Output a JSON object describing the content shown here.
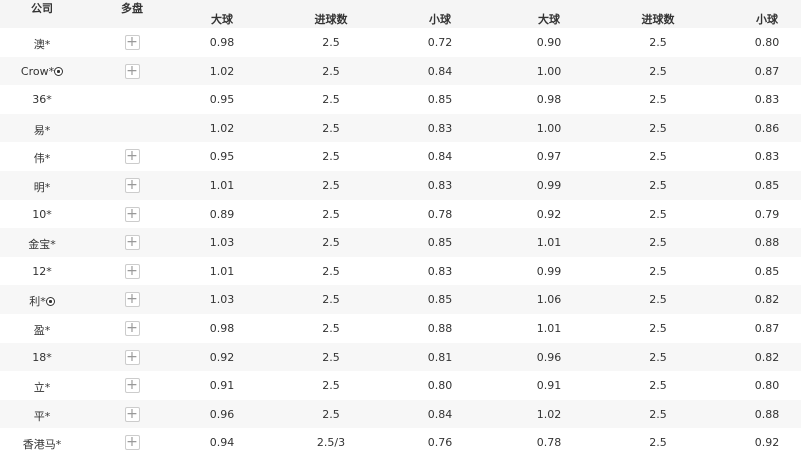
{
  "headers": {
    "company": "公司",
    "multi": "多盘",
    "over1": "大球",
    "goals1": "进球数",
    "under1": "小球",
    "over2": "大球",
    "goals2": "进球数",
    "under2": "小球"
  },
  "icons": {
    "plus": "plus-icon",
    "ball": "soccer-ball-icon"
  },
  "rows": [
    {
      "company": "澳*",
      "plus": true,
      "ball": false,
      "o1": "0.98",
      "g1": "2.5",
      "u1": "0.72",
      "o2": "0.90",
      "g2": "2.5",
      "u2": "0.80"
    },
    {
      "company": "Crow*",
      "plus": true,
      "ball": true,
      "o1": "1.02",
      "g1": "2.5",
      "u1": "0.84",
      "o2": "1.00",
      "g2": "2.5",
      "u2": "0.87"
    },
    {
      "company": "36*",
      "plus": false,
      "ball": false,
      "o1": "0.95",
      "g1": "2.5",
      "u1": "0.85",
      "o2": "0.98",
      "g2": "2.5",
      "u2": "0.83"
    },
    {
      "company": "易*",
      "plus": false,
      "ball": false,
      "o1": "1.02",
      "g1": "2.5",
      "u1": "0.83",
      "o2": "1.00",
      "g2": "2.5",
      "u2": "0.86"
    },
    {
      "company": "伟*",
      "plus": true,
      "ball": false,
      "o1": "0.95",
      "g1": "2.5",
      "u1": "0.84",
      "o2": "0.97",
      "g2": "2.5",
      "u2": "0.83"
    },
    {
      "company": "明*",
      "plus": true,
      "ball": false,
      "o1": "1.01",
      "g1": "2.5",
      "u1": "0.83",
      "o2": "0.99",
      "g2": "2.5",
      "u2": "0.85"
    },
    {
      "company": "10*",
      "plus": true,
      "ball": false,
      "o1": "0.89",
      "g1": "2.5",
      "u1": "0.78",
      "o2": "0.92",
      "g2": "2.5",
      "u2": "0.79"
    },
    {
      "company": "金宝*",
      "plus": true,
      "ball": false,
      "o1": "1.03",
      "g1": "2.5",
      "u1": "0.85",
      "o2": "1.01",
      "g2": "2.5",
      "u2": "0.88"
    },
    {
      "company": "12*",
      "plus": true,
      "ball": false,
      "o1": "1.01",
      "g1": "2.5",
      "u1": "0.83",
      "o2": "0.99",
      "g2": "2.5",
      "u2": "0.85"
    },
    {
      "company": "利*",
      "plus": true,
      "ball": true,
      "o1": "1.03",
      "g1": "2.5",
      "u1": "0.85",
      "o2": "1.06",
      "g2": "2.5",
      "u2": "0.82"
    },
    {
      "company": "盈*",
      "plus": true,
      "ball": false,
      "o1": "0.98",
      "g1": "2.5",
      "u1": "0.88",
      "o2": "1.01",
      "g2": "2.5",
      "u2": "0.87"
    },
    {
      "company": "18*",
      "plus": true,
      "ball": false,
      "o1": "0.92",
      "g1": "2.5",
      "u1": "0.81",
      "o2": "0.96",
      "g2": "2.5",
      "u2": "0.82"
    },
    {
      "company": "立*",
      "plus": true,
      "ball": false,
      "o1": "0.91",
      "g1": "2.5",
      "u1": "0.80",
      "o2": "0.91",
      "g2": "2.5",
      "u2": "0.80"
    },
    {
      "company": "平*",
      "plus": true,
      "ball": false,
      "o1": "0.96",
      "g1": "2.5",
      "u1": "0.84",
      "o2": "1.02",
      "g2": "2.5",
      "u2": "0.88"
    },
    {
      "company": "香港马*",
      "plus": true,
      "ball": false,
      "o1": "0.94",
      "g1": "2.5/3",
      "u1": "0.76",
      "o2": "0.78",
      "g2": "2.5",
      "u2": "0.92"
    }
  ]
}
